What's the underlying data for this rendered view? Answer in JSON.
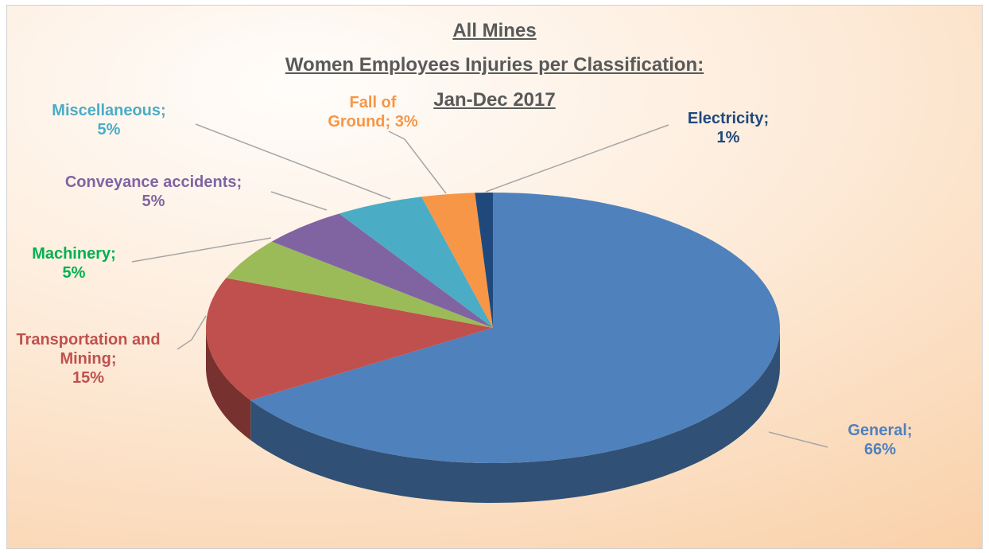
{
  "chart_data": {
    "type": "pie",
    "title": [
      "All Mines",
      "Women Employees Injuries per Classification:",
      "Jan-Dec 2017"
    ],
    "categories": [
      "General",
      "Transportation and Mining",
      "Machinery",
      "Conveyance accidents",
      "Miscellaneous",
      "Fall of Ground",
      "Electricity"
    ],
    "values": [
      66,
      15,
      5,
      5,
      5,
      3,
      1
    ],
    "value_labels": [
      "66%",
      "15%",
      "5%",
      "5%",
      "5%",
      "3%",
      "1%"
    ],
    "label_separator": ";",
    "colors": [
      "#4f81bd",
      "#c0504d",
      "#9bbb59",
      "#8064a2",
      "#4bacc6",
      "#f79646",
      "#1f497d"
    ],
    "label_colors": [
      "#4f81bd",
      "#c0504d",
      "#00b050",
      "#8064a2",
      "#4bacc6",
      "#f79646",
      "#1f497d"
    ]
  }
}
